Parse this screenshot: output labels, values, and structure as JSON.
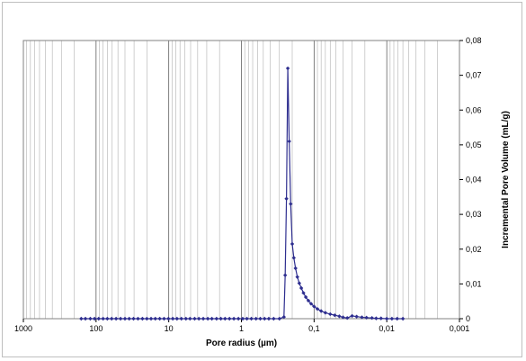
{
  "chart_data": {
    "type": "line",
    "title": "",
    "xlabel": "Pore radius (µm)",
    "ylabel": "Incremental Pore Volume  (mL/g)",
    "x_scale": "log",
    "x_reversed": true,
    "xlim": [
      1000,
      0.001
    ],
    "ylim": [
      0,
      0.08
    ],
    "x_ticks": [
      "1000",
      "100",
      "10",
      "1",
      "0,1",
      "0,01",
      "0,001"
    ],
    "y_ticks": [
      "0",
      "0,01",
      "0,02",
      "0,03",
      "0,04",
      "0,05",
      "0,06",
      "0,07",
      "0,08"
    ],
    "y_axis_side": "right",
    "grid": "vertical",
    "line_color": "#2e2e8f",
    "marker": "diamond",
    "series": [
      {
        "x": [
          160,
          140,
          120,
          105,
          92,
          80,
          70,
          61,
          53,
          46,
          40,
          35,
          30.5,
          26.5,
          23,
          20,
          17.5,
          15.3,
          13.3,
          11.6,
          10.1,
          8.8,
          7.7,
          6.7,
          5.8,
          5.1,
          4.4,
          3.85,
          3.35,
          2.9,
          2.55,
          2.2,
          1.92,
          1.68,
          1.46,
          1.27,
          1.1,
          0.96,
          0.84,
          0.73,
          0.63,
          0.55,
          0.48,
          0.42,
          0.36,
          0.3,
          0.26,
          0.25,
          0.24,
          0.23,
          0.22,
          0.21,
          0.2,
          0.19,
          0.18,
          0.17,
          0.16,
          0.15,
          0.14,
          0.13,
          0.12,
          0.11,
          0.1,
          0.09,
          0.08,
          0.07,
          0.06,
          0.052,
          0.045,
          0.04,
          0.035,
          0.03,
          0.026,
          0.022,
          0.019,
          0.016,
          0.014,
          0.012,
          0.01,
          0.0085,
          0.0072,
          0.006
        ],
        "y": [
          0,
          0,
          0,
          0,
          0,
          0,
          0,
          0,
          0,
          0,
          0,
          0,
          0,
          0,
          0,
          0,
          0,
          0,
          0,
          0,
          0,
          0,
          0,
          0,
          0,
          0,
          0,
          0,
          0,
          0,
          0,
          0,
          0,
          0,
          0,
          0,
          0,
          0,
          0,
          0,
          0,
          0,
          0,
          0,
          0,
          0,
          0.0005,
          0.0125,
          0.0345,
          0.072,
          0.051,
          0.033,
          0.0215,
          0.0175,
          0.0145,
          0.012,
          0.0102,
          0.0088,
          0.0074,
          0.0062,
          0.0052,
          0.0043,
          0.0035,
          0.0028,
          0.0022,
          0.0017,
          0.0013,
          0.001,
          0.0007,
          0.0004,
          0.0002,
          0.0008,
          0.0006,
          0.0004,
          0.0003,
          0.0002,
          0.0001,
          0.0001,
          0,
          0,
          0,
          0
        ]
      }
    ]
  }
}
